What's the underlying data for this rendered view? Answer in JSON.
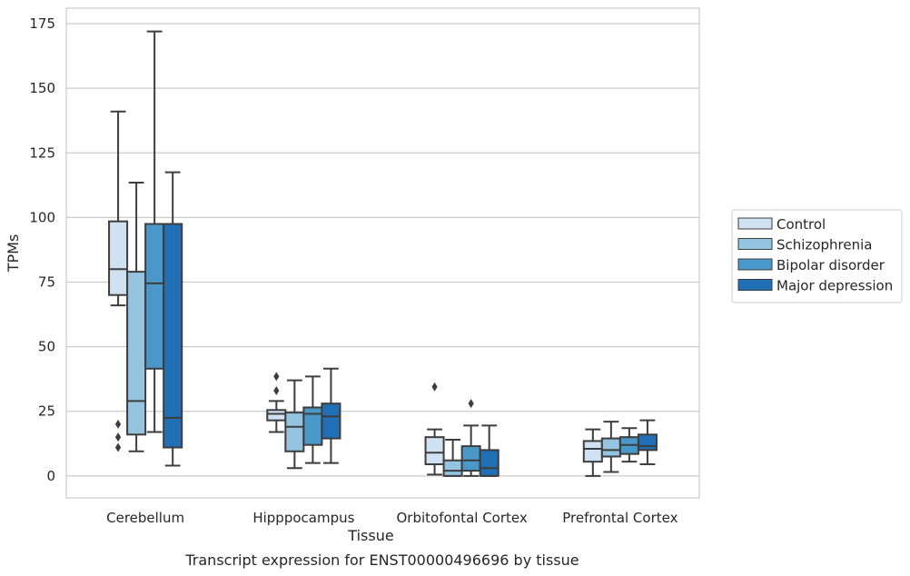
{
  "chart_data": {
    "type": "boxplot",
    "title": "",
    "caption": "Transcript expression for ENST00000496696 by tissue",
    "xlabel": "Tissue",
    "ylabel": "TPMs",
    "ylim": [
      -8.5,
      181
    ],
    "yticks": [
      0,
      25,
      50,
      75,
      100,
      125,
      150,
      175
    ],
    "grid": "horizontal",
    "legend_position": "right",
    "categories": [
      "Cerebellum",
      "Hipppocampus",
      "Orbitofontal Cortex",
      "Prefrontal Cortex"
    ],
    "series": [
      {
        "name": "Control",
        "color": "#d0e1f2",
        "boxes": [
          {
            "whisker_low": 66,
            "q1": 70,
            "median": 80,
            "q3": 98.5,
            "whisker_high": 141,
            "outliers": [
              20,
              15,
              11
            ]
          },
          {
            "whisker_low": 17,
            "q1": 21.5,
            "median": 24,
            "q3": 25.5,
            "whisker_high": 29,
            "outliers": [
              33,
              38.5
            ]
          },
          {
            "whisker_low": 0.5,
            "q1": 4.5,
            "median": 9,
            "q3": 15,
            "whisker_high": 18,
            "outliers": [
              34.5
            ]
          },
          {
            "whisker_low": 0,
            "q1": 5.5,
            "median": 10.5,
            "q3": 13.5,
            "whisker_high": 18,
            "outliers": []
          }
        ]
      },
      {
        "name": "Schizophrenia",
        "color": "#94c4df",
        "boxes": [
          {
            "whisker_low": 9.5,
            "q1": 16,
            "median": 29,
            "q3": 79,
            "whisker_high": 113.5,
            "outliers": []
          },
          {
            "whisker_low": 3,
            "q1": 9.5,
            "median": 19,
            "q3": 24.5,
            "whisker_high": 37,
            "outliers": []
          },
          {
            "whisker_low": 0,
            "q1": 0,
            "median": 2,
            "q3": 6,
            "whisker_high": 14,
            "outliers": []
          },
          {
            "whisker_low": 1.5,
            "q1": 7.5,
            "median": 10,
            "q3": 14.5,
            "whisker_high": 21,
            "outliers": []
          }
        ]
      },
      {
        "name": "Bipolar disorder",
        "color": "#4a98c9",
        "boxes": [
          {
            "whisker_low": 17,
            "q1": 41.5,
            "median": 74.5,
            "q3": 97.5,
            "whisker_high": 172,
            "outliers": []
          },
          {
            "whisker_low": 5,
            "q1": 12,
            "median": 24,
            "q3": 26.5,
            "whisker_high": 38.5,
            "outliers": []
          },
          {
            "whisker_low": 0,
            "q1": 2,
            "median": 6,
            "q3": 11.5,
            "whisker_high": 19.5,
            "outliers": [
              28
            ]
          },
          {
            "whisker_low": 5.5,
            "q1": 8.5,
            "median": 12,
            "q3": 15,
            "whisker_high": 18.5,
            "outliers": []
          }
        ]
      },
      {
        "name": "Major depression",
        "color": "#2170b5",
        "boxes": [
          {
            "whisker_low": 4,
            "q1": 11,
            "median": 22.5,
            "q3": 97.5,
            "whisker_high": 117.5,
            "outliers": []
          },
          {
            "whisker_low": 5,
            "q1": 14.5,
            "median": 23,
            "q3": 28,
            "whisker_high": 41.5,
            "outliers": []
          },
          {
            "whisker_low": 0,
            "q1": 0,
            "median": 3,
            "q3": 10,
            "whisker_high": 19.5,
            "outliers": []
          },
          {
            "whisker_low": 4.5,
            "q1": 10,
            "median": 11.5,
            "q3": 16,
            "whisker_high": 21.5,
            "outliers": []
          }
        ]
      }
    ]
  }
}
